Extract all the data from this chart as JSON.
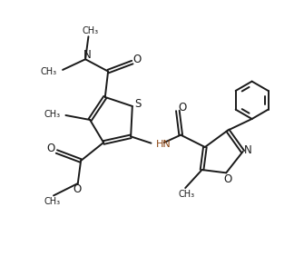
{
  "bg_color": "#ffffff",
  "line_color": "#1a1a1a",
  "hn_color": "#8B4513",
  "bond_lw": 1.4,
  "figsize": [
    3.35,
    3.04
  ],
  "dpi": 100,
  "xlim": [
    0,
    10
  ],
  "ylim": [
    0,
    9
  ]
}
